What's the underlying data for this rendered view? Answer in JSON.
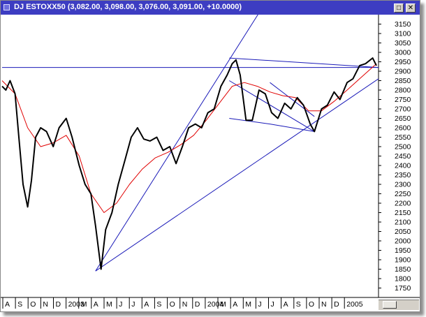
{
  "window": {
    "title": "DJ ESTOXX50",
    "ohlc_readout": "(3,082.00, 3,098.00, 3,076.00, 3,091.00, +10.0000)",
    "restore_glyph": "□",
    "close_glyph": "✕"
  },
  "colors": {
    "titlebar": "#3d3dc2",
    "price": "#000000",
    "moving_average": "#e00000",
    "trendlines": "#1a1ab8"
  },
  "chart_data": {
    "type": "line",
    "y_ticks": [
      "3150",
      "3100",
      "3050",
      "3000",
      "2950",
      "2900",
      "2850",
      "2800",
      "2750",
      "2700",
      "2650",
      "2600",
      "2550",
      "2500",
      "2450",
      "2400",
      "2350",
      "2300",
      "2250",
      "2200",
      "2150",
      "2100",
      "2050",
      "2000",
      "1950",
      "1900",
      "1850",
      "1800",
      "1750"
    ],
    "ylim": [
      1700,
      3200
    ],
    "x_ticks": [
      "A",
      "S",
      "O",
      "N",
      "D",
      "2003",
      "M",
      "A",
      "M",
      "J",
      "J",
      "A",
      "S",
      "O",
      "N",
      "D",
      "2004",
      "M",
      "A",
      "M",
      "J",
      "J",
      "A",
      "S",
      "O",
      "N",
      "D",
      "2005"
    ],
    "x_range": [
      "2002-08-01",
      "2005-01-15"
    ],
    "series": [
      {
        "role": "price",
        "x": [
          "2002-08-01",
          "2002-08-10",
          "2002-08-20",
          "2002-09-01",
          "2002-09-10",
          "2002-09-20",
          "2002-10-01",
          "2002-10-10",
          "2002-10-20",
          "2002-11-01",
          "2002-11-15",
          "2002-12-01",
          "2002-12-15",
          "2003-01-01",
          "2003-01-15",
          "2003-02-01",
          "2003-02-15",
          "2003-03-01",
          "2003-03-12",
          "2003-03-25",
          "2003-04-05",
          "2003-04-20",
          "2003-05-05",
          "2003-05-20",
          "2003-06-05",
          "2003-06-20",
          "2003-07-05",
          "2003-07-20",
          "2003-08-05",
          "2003-08-20",
          "2003-09-05",
          "2003-09-20",
          "2003-10-05",
          "2003-10-20",
          "2003-11-05",
          "2003-11-20",
          "2003-12-05",
          "2003-12-20",
          "2004-01-05",
          "2004-01-20",
          "2004-02-01",
          "2004-02-10",
          "2004-02-20",
          "2004-03-05",
          "2004-03-20",
          "2004-04-05",
          "2004-04-20",
          "2004-05-05",
          "2004-05-20",
          "2004-06-05",
          "2004-06-20",
          "2004-07-05",
          "2004-07-20",
          "2004-08-05",
          "2004-08-15",
          "2004-09-01",
          "2004-09-15",
          "2004-10-01",
          "2004-10-15",
          "2004-11-01",
          "2004-11-15",
          "2004-12-01",
          "2004-12-15",
          "2005-01-01",
          "2005-01-10"
        ],
        "y": [
          2820,
          2800,
          2850,
          2780,
          2550,
          2300,
          2180,
          2320,
          2550,
          2600,
          2580,
          2500,
          2600,
          2650,
          2550,
          2400,
          2300,
          2250,
          2080,
          1850,
          2060,
          2150,
          2300,
          2420,
          2550,
          2600,
          2540,
          2530,
          2550,
          2480,
          2500,
          2410,
          2500,
          2600,
          2620,
          2600,
          2680,
          2700,
          2820,
          2880,
          2940,
          2960,
          2880,
          2640,
          2640,
          2800,
          2780,
          2680,
          2650,
          2730,
          2700,
          2760,
          2720,
          2620,
          2580,
          2700,
          2720,
          2790,
          2750,
          2840,
          2860,
          2930,
          2940,
          2970,
          2930
        ]
      },
      {
        "role": "moving_average",
        "x": [
          "2002-08-01",
          "2002-09-01",
          "2002-10-01",
          "2002-11-01",
          "2002-12-01",
          "2003-01-01",
          "2003-02-01",
          "2003-03-01",
          "2003-04-01",
          "2003-05-01",
          "2003-06-01",
          "2003-07-01",
          "2003-08-01",
          "2003-09-01",
          "2003-10-01",
          "2003-11-01",
          "2003-12-01",
          "2004-01-01",
          "2004-02-01",
          "2004-03-01",
          "2004-04-01",
          "2004-05-01",
          "2004-06-01",
          "2004-07-01",
          "2004-08-01",
          "2004-09-01",
          "2004-10-01",
          "2004-11-01",
          "2004-12-01",
          "2005-01-10"
        ],
        "y": [
          2850,
          2780,
          2600,
          2500,
          2520,
          2560,
          2450,
          2250,
          2150,
          2200,
          2300,
          2380,
          2440,
          2470,
          2510,
          2560,
          2640,
          2730,
          2820,
          2840,
          2820,
          2790,
          2770,
          2760,
          2690,
          2690,
          2740,
          2800,
          2860,
          2940
        ]
      }
    ],
    "trendlines": [
      {
        "x": [
          "2002-08-01",
          "2005-01-15"
        ],
        "y": [
          2920,
          2920
        ]
      },
      {
        "x": [
          "2003-03-12",
          "2004-05-15"
        ],
        "y": [
          1840,
          3350
        ]
      },
      {
        "x": [
          "2003-03-12",
          "2005-01-15"
        ],
        "y": [
          1840,
          2860
        ]
      },
      {
        "x": [
          "2004-01-25",
          "2005-01-15"
        ],
        "y": [
          2970,
          2920
        ]
      },
      {
        "x": [
          "2004-01-25",
          "2004-08-15"
        ],
        "y": [
          2850,
          2580
        ]
      },
      {
        "x": [
          "2004-01-25",
          "2004-05-01"
        ],
        "y": [
          2650,
          2620
        ]
      },
      {
        "x": [
          "2004-05-01",
          "2004-08-15"
        ],
        "y": [
          2620,
          2580
        ]
      },
      {
        "x": [
          "2004-05-01",
          "2004-08-15"
        ],
        "y": [
          2840,
          2660
        ]
      }
    ]
  }
}
